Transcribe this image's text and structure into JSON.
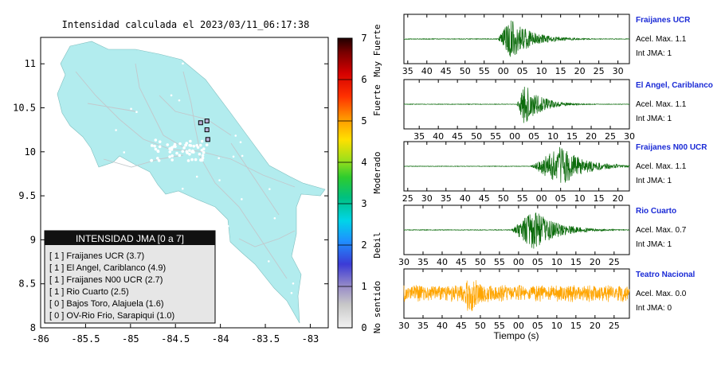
{
  "map": {
    "title": "Intensidad calculada el 2023/03/11_06:17:38",
    "x_ticks": [
      "-86",
      "-85.5",
      "-85",
      "-84.5",
      "-84",
      "-83.5",
      "-83"
    ],
    "y_ticks": [
      "11",
      "10.5",
      "10",
      "9.5",
      "9",
      "8.5",
      "8"
    ],
    "xlim": [
      -86,
      -82.8
    ],
    "ylim": [
      8,
      11.3
    ],
    "land_color": "#b2ecee",
    "legend": {
      "title": "INTENSIDAD JMA [0 a 7]",
      "items": [
        "[ 1 ]  Fraijanes UCR (3.7)",
        "[ 1 ]  El Angel, Cariblanco (4.9)",
        "[ 1 ]  Fraijanes N00 UCR (2.7)",
        "[ 1 ]  Rio Cuarto (2.5)",
        "[ 0 ]  Bajos Toro, Alajuela (1.6)",
        "[ 0 ]  OV-Rio Frio, Sarapiqui (1.0)"
      ]
    },
    "stations": [
      {
        "lon": -84.22,
        "lat": 10.33
      },
      {
        "lon": -84.15,
        "lat": 10.35
      },
      {
        "lon": -84.15,
        "lat": 10.25
      },
      {
        "lon": -84.14,
        "lat": 10.14
      }
    ]
  },
  "colorbar": {
    "ticks": [
      "0",
      "1",
      "2",
      "3",
      "4",
      "5",
      "6",
      "7"
    ],
    "labels": [
      "No sentido",
      "Debil",
      "Moderado",
      "Fuerte",
      "Muy Fuerte"
    ]
  },
  "chart_data": [
    {
      "type": "line",
      "name": "Fraijanes UCR",
      "accel_label": "Acel. Max. 1.1",
      "int_label": "Int JMA: 1",
      "tick_labels": [
        "35",
        "40",
        "45",
        "50",
        "55",
        "00",
        "05",
        "10",
        "15",
        "20",
        "25",
        "30"
      ],
      "tick_seconds": [
        35,
        40,
        45,
        50,
        55,
        60,
        65,
        70,
        75,
        80,
        85,
        90
      ],
      "xlim": [
        34,
        93
      ],
      "onset": 58.5,
      "peak": 62,
      "amplitude": 0.95,
      "noise": 0.015,
      "decay": 5.5,
      "color": "#0b6b0b"
    },
    {
      "type": "line",
      "name": "El Angel, Cariblanco",
      "accel_label": "Acel. Max. 1.1",
      "int_label": "Int JMA: 1",
      "tick_labels": [
        "35",
        "40",
        "45",
        "50",
        "55",
        "00",
        "05",
        "10",
        "15",
        "20",
        "25",
        "30"
      ],
      "tick_seconds": [
        35,
        40,
        45,
        50,
        55,
        60,
        65,
        70,
        75,
        80,
        85,
        90
      ],
      "xlim": [
        31,
        90
      ],
      "onset": 60.5,
      "peak": 62.5,
      "amplitude": 0.95,
      "noise": 0.012,
      "decay": 4.5,
      "color": "#0b6b0b"
    },
    {
      "type": "line",
      "name": "Fraijanes N00 UCR",
      "accel_label": "Acel. Max. 1.1",
      "int_label": "Int JMA: 1",
      "tick_labels": [
        "25",
        "30",
        "35",
        "40",
        "45",
        "50",
        "55",
        "00",
        "05",
        "10",
        "15",
        "20"
      ],
      "tick_seconds": [
        25,
        30,
        35,
        40,
        45,
        50,
        55,
        60,
        65,
        70,
        75,
        80
      ],
      "xlim": [
        24,
        83
      ],
      "onset": 57,
      "peak": 65,
      "amplitude": 0.95,
      "noise": 0.012,
      "decay": 6,
      "color": "#0b6b0b"
    },
    {
      "type": "line",
      "name": "Rio Cuarto",
      "accel_label": "Acel. Max. 0.7",
      "int_label": "Int JMA: 1",
      "tick_labels": [
        "30",
        "35",
        "40",
        "45",
        "50",
        "55",
        "00",
        "05",
        "10",
        "15",
        "20",
        "25"
      ],
      "tick_seconds": [
        30,
        35,
        40,
        45,
        50,
        55,
        60,
        65,
        70,
        75,
        80,
        85
      ],
      "xlim": [
        30,
        89
      ],
      "onset": 58,
      "peak": 64,
      "amplitude": 0.95,
      "noise": 0.015,
      "decay": 6,
      "color": "#0b6b0b"
    },
    {
      "type": "line",
      "name": "Teatro Nacional",
      "accel_label": "Acel. Max. 0.0",
      "int_label": "Int JMA: 0",
      "tick_labels": [
        "30",
        "35",
        "40",
        "45",
        "50",
        "55",
        "00",
        "05",
        "10",
        "15",
        "20",
        "25"
      ],
      "tick_seconds": [
        30,
        35,
        40,
        45,
        50,
        55,
        60,
        65,
        70,
        75,
        80,
        85
      ],
      "xlim": [
        30,
        89
      ],
      "onset": 0,
      "peak": 47.5,
      "amplitude": 0.95,
      "noise": 0.28,
      "decay": 2,
      "color": "#ffa500"
    }
  ],
  "xlabel": "Tiempo (s)"
}
